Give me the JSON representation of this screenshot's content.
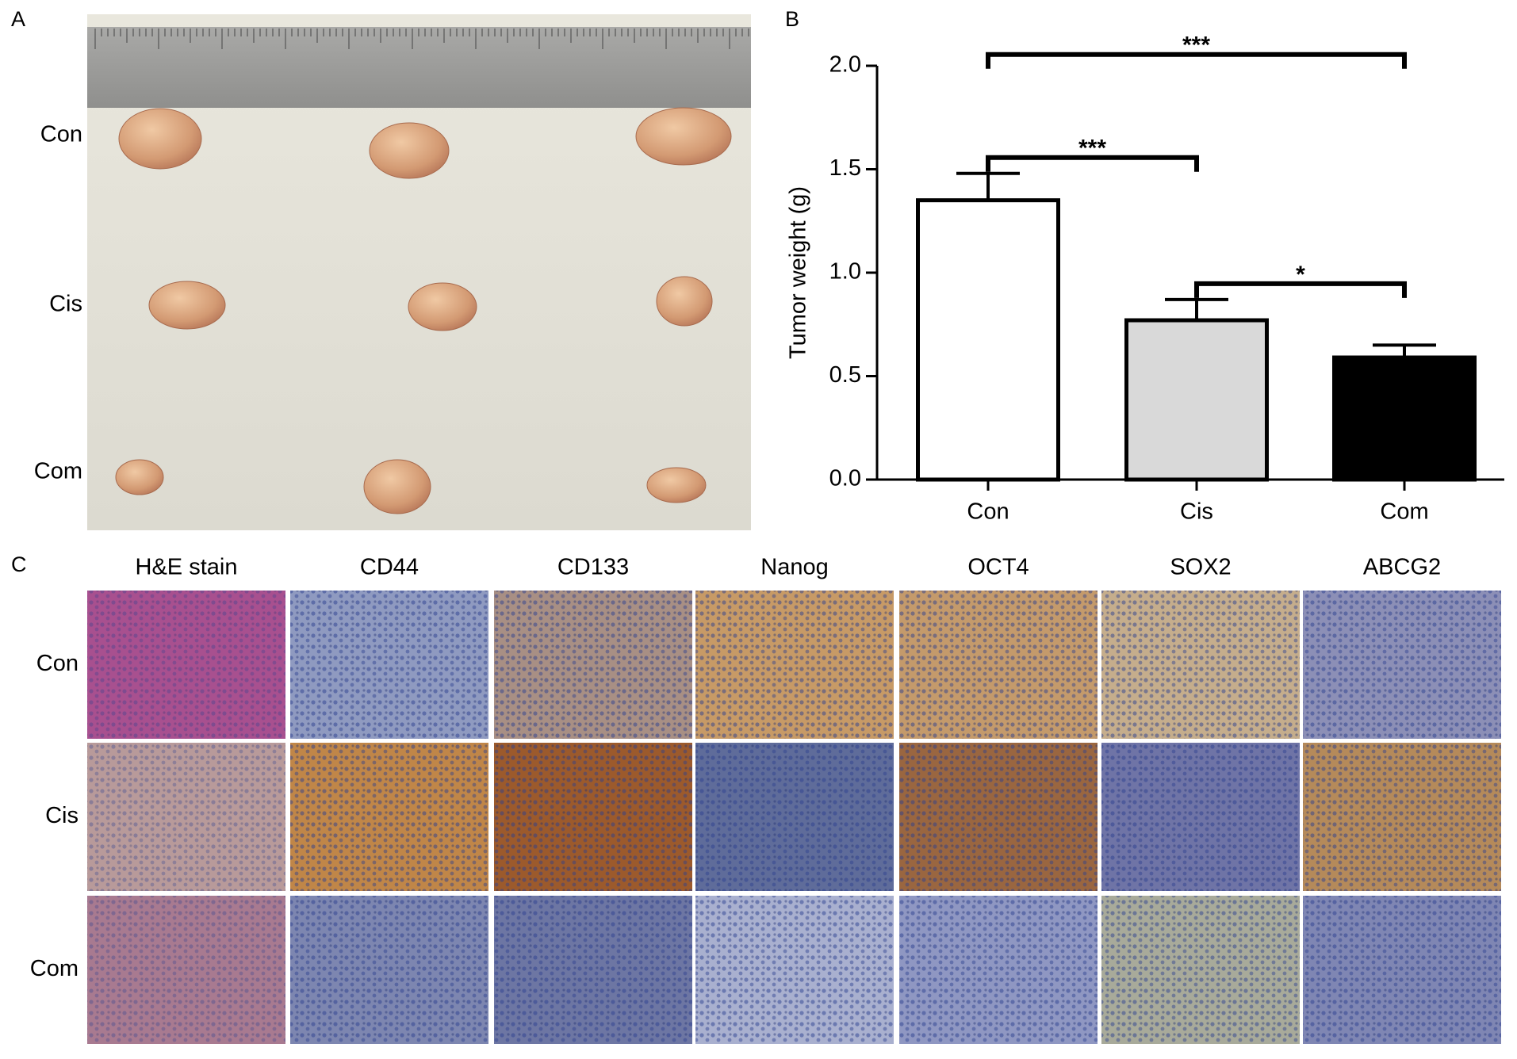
{
  "panels": {
    "A": {
      "label": "A",
      "rows": [
        "Con",
        "Cis",
        "Com"
      ]
    },
    "B": {
      "label": "B"
    },
    "C": {
      "label": "C",
      "columns": [
        "H&E stain",
        "CD44",
        "CD133",
        "Nanog",
        "OCT4",
        "SOX2",
        "ABCG2"
      ],
      "rows": [
        "Con",
        "Cis",
        "Com"
      ]
    }
  },
  "chart_data": {
    "type": "bar",
    "y_label": "Tumor weight (g)",
    "categories": [
      "Con",
      "Cis",
      "Com"
    ],
    "values": [
      1.35,
      0.77,
      0.59
    ],
    "errors": [
      0.13,
      0.1,
      0.06
    ],
    "colors": [
      "#ffffff",
      "#d9d9d9",
      "#000000"
    ],
    "ylim": [
      0,
      2.0
    ],
    "yticks": [
      {
        "value": 0,
        "label": "0.0"
      },
      {
        "value": 0.5,
        "label": "0.5"
      },
      {
        "value": 1.0,
        "label": "1.0"
      },
      {
        "value": 1.5,
        "label": "1.5"
      },
      {
        "value": 2.0,
        "label": "2.0"
      }
    ],
    "annotations": [
      {
        "groups": [
          "Con",
          "Com"
        ],
        "label": "***"
      },
      {
        "groups": [
          "Con",
          "Cis"
        ],
        "label": "***"
      },
      {
        "groups": [
          "Cis",
          "Com"
        ],
        "label": "*"
      }
    ]
  }
}
